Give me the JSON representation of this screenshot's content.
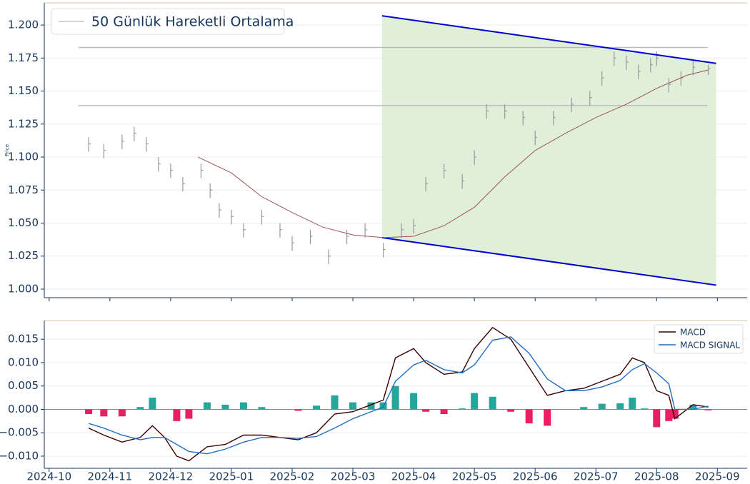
{
  "chart_data": [
    {
      "type": "ohlc",
      "ylabel": "Price",
      "xlim": [
        -0.08,
        11.49
      ],
      "xticks": [
        0,
        1,
        2,
        3,
        4,
        5,
        6,
        7,
        8,
        9,
        10,
        11
      ],
      "ylim": [
        0.9935,
        1.2168
      ],
      "yticks": [
        {
          "value": 1.0,
          "label": "1.000"
        },
        {
          "value": 1.025,
          "label": "1.025"
        },
        {
          "value": 1.05,
          "label": "1.050"
        },
        {
          "value": 1.075,
          "label": "1.075"
        },
        {
          "value": 1.1,
          "label": "1.100"
        },
        {
          "value": 1.125,
          "label": "1.125"
        },
        {
          "value": 1.15,
          "label": "1.150"
        },
        {
          "value": 1.175,
          "label": "1.175"
        },
        {
          "value": 1.2,
          "label": "1.200"
        }
      ],
      "grid": true,
      "legend": "upper left",
      "price": {
        "color": "#999999",
        "x": [
          0.65,
          0.9,
          1.2,
          1.4,
          1.6,
          1.8,
          2.0,
          2.2,
          2.5,
          2.65,
          2.8,
          3.0,
          3.2,
          3.5,
          3.8,
          4.0,
          4.3,
          4.6,
          4.9,
          5.2,
          5.5,
          5.8,
          6.0,
          6.2,
          6.5,
          6.8,
          7.0,
          7.2,
          7.5,
          7.8,
          8.0,
          8.3,
          8.6,
          8.9,
          9.1,
          9.3,
          9.5,
          9.7,
          9.9,
          10.0,
          10.2,
          10.4,
          10.6,
          10.85
        ],
        "high": [
          1.115,
          1.11,
          1.117,
          1.123,
          1.115,
          1.1,
          1.095,
          1.085,
          1.095,
          1.08,
          1.065,
          1.06,
          1.05,
          1.06,
          1.05,
          1.04,
          1.045,
          1.03,
          1.045,
          1.05,
          1.035,
          1.05,
          1.053,
          1.085,
          1.095,
          1.087,
          1.105,
          1.14,
          1.14,
          1.135,
          1.12,
          1.135,
          1.145,
          1.15,
          1.165,
          1.18,
          1.177,
          1.17,
          1.175,
          1.18,
          1.16,
          1.165,
          1.173,
          1.17
        ],
        "low": [
          1.104,
          1.099,
          1.106,
          1.112,
          1.104,
          1.089,
          1.084,
          1.074,
          1.084,
          1.069,
          1.054,
          1.049,
          1.039,
          1.049,
          1.039,
          1.029,
          1.034,
          1.019,
          1.034,
          1.039,
          1.024,
          1.039,
          1.042,
          1.074,
          1.084,
          1.076,
          1.094,
          1.129,
          1.129,
          1.124,
          1.109,
          1.124,
          1.134,
          1.139,
          1.154,
          1.169,
          1.166,
          1.159,
          1.164,
          1.169,
          1.149,
          1.154,
          1.162,
          1.162
        ],
        "close": [
          1.11,
          1.105,
          1.112,
          1.118,
          1.11,
          1.095,
          1.09,
          1.08,
          1.09,
          1.075,
          1.06,
          1.055,
          1.045,
          1.055,
          1.045,
          1.035,
          1.04,
          1.025,
          1.04,
          1.045,
          1.03,
          1.045,
          1.048,
          1.08,
          1.09,
          1.082,
          1.1,
          1.135,
          1.135,
          1.13,
          1.115,
          1.13,
          1.14,
          1.145,
          1.16,
          1.175,
          1.172,
          1.165,
          1.17,
          1.175,
          1.155,
          1.16,
          1.168,
          1.167
        ]
      },
      "series": [
        {
          "name": "50 Günlük Hareketli Ortalama",
          "color": "#a0505a",
          "x": [
            2.45,
            3.0,
            3.5,
            4.0,
            4.5,
            5.0,
            5.5,
            6.0,
            6.5,
            7.0,
            7.5,
            8.0,
            8.5,
            9.0,
            9.5,
            10.0,
            10.5,
            10.85
          ],
          "values": [
            1.1,
            1.088,
            1.07,
            1.058,
            1.047,
            1.041,
            1.039,
            1.04,
            1.048,
            1.062,
            1.085,
            1.105,
            1.118,
            1.13,
            1.14,
            1.152,
            1.162,
            1.166
          ]
        }
      ],
      "hlines": {
        "color": "#bbbbbb",
        "x": [
          0.48,
          10.84
        ],
        "values": [
          1.183,
          1.139
        ]
      },
      "channel": {
        "color": "#0000cc",
        "fill": "#e0efd9",
        "upper": {
          "x": [
            5.48,
            10.98
          ],
          "values": [
            1.207,
            1.171
          ]
        },
        "lower": {
          "x": [
            5.48,
            10.98
          ],
          "values": [
            1.039,
            1.003
          ]
        }
      }
    },
    {
      "type": "macd",
      "xlim": [
        -0.08,
        11.49
      ],
      "xticks": [
        {
          "value": 0,
          "label": "2024-10"
        },
        {
          "value": 1,
          "label": "2024-11"
        },
        {
          "value": 2,
          "label": "2024-12"
        },
        {
          "value": 3,
          "label": "2025-01"
        },
        {
          "value": 4,
          "label": "2025-02"
        },
        {
          "value": 5,
          "label": "2025-03"
        },
        {
          "value": 6,
          "label": "2025-04"
        },
        {
          "value": 7,
          "label": "2025-05"
        },
        {
          "value": 8,
          "label": "2025-06"
        },
        {
          "value": 9,
          "label": "2025-07"
        },
        {
          "value": 10,
          "label": "2025-08"
        },
        {
          "value": 11,
          "label": "2025-09"
        }
      ],
      "ylim": [
        -0.0126,
        0.019
      ],
      "yticks": [
        {
          "value": -0.01,
          "label": "−0.010"
        },
        {
          "value": -0.005,
          "label": "−0.005"
        },
        {
          "value": 0,
          "label": "0.000"
        },
        {
          "value": 0.005,
          "label": "0.005"
        },
        {
          "value": 0.01,
          "label": "0.010"
        },
        {
          "value": 0.015,
          "label": "0.015"
        }
      ],
      "grid": true,
      "legend": "upper right",
      "x": [
        0.65,
        0.9,
        1.2,
        1.5,
        1.7,
        1.9,
        2.1,
        2.3,
        2.6,
        2.9,
        3.2,
        3.5,
        3.8,
        4.1,
        4.4,
        4.7,
        5.0,
        5.3,
        5.5,
        5.7,
        6.0,
        6.2,
        6.5,
        6.8,
        7.0,
        7.3,
        7.6,
        7.9,
        8.2,
        8.5,
        8.8,
        9.1,
        9.4,
        9.6,
        9.8,
        10.0,
        10.2,
        10.3,
        10.6,
        10.85
      ],
      "series": [
        {
          "name": "MACD",
          "color": "#3a0000",
          "values": [
            -0.004,
            -0.0055,
            -0.007,
            -0.006,
            -0.0035,
            -0.006,
            -0.01,
            -0.011,
            -0.008,
            -0.0075,
            -0.0055,
            -0.0055,
            -0.006,
            -0.0065,
            -0.005,
            -0.001,
            -0.0005,
            0.001,
            0.002,
            0.011,
            0.013,
            0.01,
            0.0075,
            0.008,
            0.013,
            0.0175,
            0.015,
            0.009,
            0.003,
            0.004,
            0.0045,
            0.006,
            0.0075,
            0.011,
            0.01,
            0.004,
            0.003,
            -0.002,
            0.001,
            0.0005
          ]
        },
        {
          "name": "MACD SIGNAL",
          "color": "#1f6fc5",
          "values": [
            -0.003,
            -0.004,
            -0.0055,
            -0.0065,
            -0.006,
            -0.006,
            -0.0075,
            -0.009,
            -0.0095,
            -0.0085,
            -0.007,
            -0.006,
            -0.006,
            -0.0062,
            -0.0058,
            -0.004,
            -0.002,
            -0.0005,
            0.0005,
            0.006,
            0.0095,
            0.0105,
            0.0085,
            0.0078,
            0.0095,
            0.0148,
            0.0155,
            0.012,
            0.0065,
            0.004,
            0.004,
            0.0048,
            0.0062,
            0.0085,
            0.0098,
            0.0078,
            0.0055,
            0.0,
            0.0,
            0.0007
          ]
        }
      ],
      "histogram": {
        "positive_color": "#26a69a",
        "negative_color": "#e91e63",
        "values": [
          -0.001,
          -0.0015,
          -0.0015,
          0.0005,
          0.0025,
          0,
          -0.0025,
          -0.002,
          0.0015,
          0.001,
          0.0015,
          0.0005,
          0,
          -0.0003,
          0.0008,
          0.003,
          0.0015,
          0.0015,
          0.0015,
          0.005,
          0.0035,
          -0.0005,
          -0.001,
          0.0002,
          0.0035,
          0.0027,
          -0.0005,
          -0.003,
          -0.0035,
          0,
          0.0005,
          0.0012,
          0.0013,
          0.0025,
          0.0002,
          -0.0038,
          -0.0025,
          -0.002,
          0.001,
          -0.0002
        ]
      }
    }
  ]
}
